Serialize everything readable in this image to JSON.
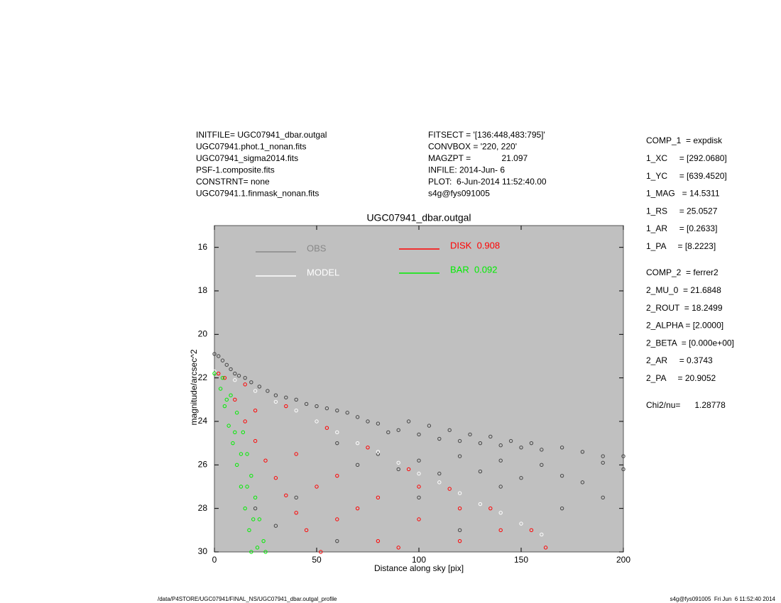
{
  "header": {
    "left": [
      "INITFILE= UGC07941_dbar.outgal",
      "UGC07941.phot.1_nonan.fits",
      "UGC07941_sigma2014.fits",
      "PSF-1.composite.fits",
      "CONSTRNT= none",
      "UGC07941.1.finmask_nonan.fits"
    ],
    "middle": [
      "FITSECT = '[136:448,483:795]'",
      "CONVBOX = '220, 220'",
      "MAGZPT =             21.097",
      "INFILE: 2014-Jun- 6",
      "PLOT:  6-Jun-2014 11:52:40.00",
      "s4g@fys091005"
    ]
  },
  "params": [
    [
      "COMP_1  = expdisk",
      "1_XC     = [292.0680]",
      "1_YC     = [639.4520]",
      "1_MAG   = 14.5311",
      "1_RS     = 25.0527",
      "1_AR     = [0.2633]",
      "1_PA     = [8.2223]"
    ],
    [
      "COMP_2  = ferrer2",
      "2_MU_0  = 21.6848",
      "2_ROUT  = 18.2499",
      "2_ALPHA = [2.0000]",
      "2_BETA  = [0.000e+00]",
      "2_AR     = 0.3743",
      "2_PA     = 20.9052"
    ],
    [
      "Chi2/nu=      1.28778"
    ]
  ],
  "footer": {
    "left": "/data/P4STORE/UGC07941/FINAL_NS/UGC07941_dbar.outgal_profile",
    "right": "s4g@fys091005  Fri Jun  6 11:52:40 2014"
  },
  "chart_data": {
    "type": "scatter",
    "title": "UGC07941_dbar.outgal",
    "x_label": "Distance along sky [pix]",
    "y_label": "magnitude/arcsec^2",
    "xlim": [
      0,
      200
    ],
    "xticks": [
      0,
      50,
      100,
      150,
      200
    ],
    "ylim": [
      15,
      30
    ],
    "yticks": [
      16,
      18,
      20,
      22,
      24,
      26,
      28,
      30
    ],
    "y_inverted": true,
    "background": "#c0c0c0",
    "series": [
      {
        "name": "OBS",
        "color": "#888888",
        "point_color": "#444444",
        "x": [
          0,
          2,
          4,
          6,
          8,
          10,
          12,
          15,
          18,
          22,
          26,
          30,
          35,
          40,
          45,
          50,
          55,
          60,
          65,
          70,
          75,
          80,
          90,
          100,
          110,
          120,
          130,
          140,
          150,
          160,
          170,
          180,
          190,
          200,
          60,
          70,
          80,
          90,
          100,
          110,
          120,
          130,
          140,
          150,
          160,
          170,
          180,
          190,
          200,
          40,
          30,
          20,
          100,
          140,
          170,
          190,
          60,
          120,
          85,
          95,
          105,
          115,
          125,
          135,
          145,
          155
        ],
        "y": [
          20.9,
          21.0,
          21.2,
          21.4,
          21.6,
          21.8,
          21.9,
          22.0,
          22.2,
          22.4,
          22.6,
          22.8,
          22.9,
          23.0,
          23.2,
          23.3,
          23.4,
          23.5,
          23.6,
          23.8,
          24.0,
          24.1,
          24.4,
          24.6,
          24.8,
          24.9,
          25.0,
          25.1,
          25.2,
          25.3,
          25.2,
          25.4,
          25.6,
          25.6,
          25.0,
          26.0,
          25.5,
          26.2,
          25.8,
          26.4,
          25.6,
          26.3,
          25.8,
          26.6,
          26.0,
          26.5,
          26.8,
          25.9,
          26.2,
          27.5,
          28.8,
          28.0,
          27.5,
          27.0,
          28.0,
          27.5,
          29.5,
          29.0,
          24.5,
          24.0,
          24.2,
          24.4,
          24.6,
          24.7,
          24.9,
          25.0
        ]
      },
      {
        "name": "MODEL",
        "color": "#ffffff",
        "x": [
          0,
          10,
          20,
          30,
          40,
          50,
          60,
          70,
          80,
          90,
          100,
          110,
          120,
          130,
          140,
          150,
          160
        ],
        "y": [
          21.7,
          22.1,
          22.6,
          23.1,
          23.5,
          24.0,
          24.5,
          25.0,
          25.4,
          25.9,
          26.4,
          26.8,
          27.3,
          27.8,
          28.2,
          28.7,
          29.2
        ]
      },
      {
        "name": "DISK  0.908",
        "color": "#ff0000",
        "x": [
          2,
          15,
          35,
          55,
          75,
          95,
          115,
          135,
          155,
          162,
          5,
          10,
          15,
          20,
          25,
          30,
          35,
          40,
          45,
          52,
          20,
          40,
          60,
          80,
          100,
          120,
          60,
          80,
          100,
          120,
          140,
          50,
          70,
          90
        ],
        "y": [
          21.8,
          22.3,
          23.3,
          24.3,
          25.2,
          26.2,
          27.1,
          28.0,
          29.0,
          29.8,
          22.0,
          23.0,
          24.0,
          24.9,
          25.8,
          26.6,
          27.4,
          28.2,
          29.0,
          30.0,
          23.5,
          25.5,
          26.5,
          27.5,
          28.5,
          29.5,
          28.5,
          29.5,
          27.0,
          28.0,
          29.0,
          27.0,
          28.0,
          29.8
        ]
      },
      {
        "name": "BAR  0.092",
        "color": "#00ee00",
        "x": [
          0,
          3,
          5,
          7,
          9,
          11,
          13,
          15,
          17,
          18,
          4,
          8,
          11,
          14,
          16,
          18,
          20,
          22,
          24,
          25,
          6,
          10,
          13,
          16,
          19,
          21
        ],
        "y": [
          21.8,
          22.5,
          23.3,
          24.2,
          25.0,
          26.0,
          27.0,
          28.0,
          29.0,
          30.0,
          22.0,
          22.8,
          23.6,
          24.5,
          25.5,
          26.5,
          27.5,
          28.5,
          29.5,
          30.0,
          23.0,
          24.5,
          25.5,
          27.0,
          28.5,
          29.8
        ]
      }
    ]
  }
}
